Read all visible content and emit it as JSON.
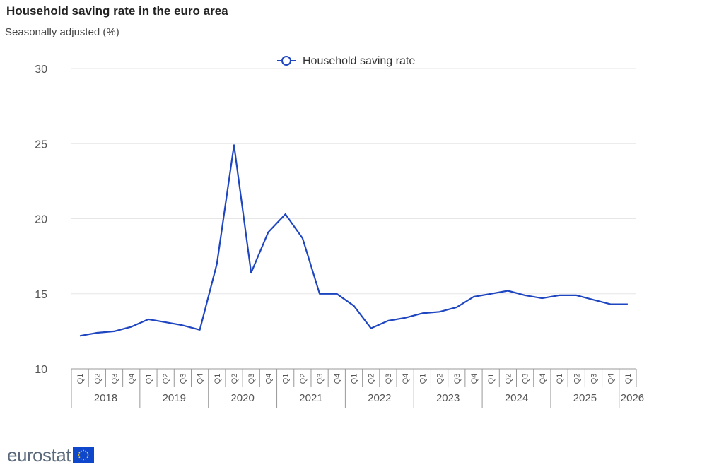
{
  "header": {
    "title": "Household saving rate in the euro area",
    "subtitle": "Seasonally adjusted (%)"
  },
  "brand": {
    "wordmark": "eurostat"
  },
  "colors": {
    "series": "#1f46c1",
    "grid": "#e6e6e6",
    "axis": "#999999",
    "text": "#555555"
  },
  "chart_data": {
    "type": "line",
    "title": "Household saving rate in the euro area",
    "subtitle": "Seasonally adjusted (%)",
    "ylim": [
      10,
      30
    ],
    "yticks": [
      10,
      15,
      20,
      25,
      30
    ],
    "grid": true,
    "legend_position": "top-center",
    "categories": [
      "2018 Q1",
      "2018 Q2",
      "2018 Q3",
      "2018 Q4",
      "2019 Q1",
      "2019 Q2",
      "2019 Q3",
      "2019 Q4",
      "2020 Q1",
      "2020 Q2",
      "2020 Q3",
      "2020 Q4",
      "2021 Q1",
      "2021 Q2",
      "2021 Q3",
      "2021 Q4",
      "2022 Q1",
      "2022 Q2",
      "2022 Q3",
      "2022 Q4",
      "2023 Q1",
      "2023 Q2",
      "2023 Q3",
      "2023 Q4",
      "2024 Q1",
      "2024 Q2",
      "2024 Q3",
      "2024 Q4",
      "2025 Q1",
      "2025 Q2",
      "2025 Q3",
      "2025 Q4",
      "2026 Q1"
    ],
    "quarters": [
      "Q1",
      "Q2",
      "Q3",
      "Q4",
      "Q1",
      "Q2",
      "Q3",
      "Q4",
      "Q1",
      "Q2",
      "Q3",
      "Q4",
      "Q1",
      "Q2",
      "Q3",
      "Q4",
      "Q1",
      "Q2",
      "Q3",
      "Q4",
      "Q1",
      "Q2",
      "Q3",
      "Q4",
      "Q1",
      "Q2",
      "Q3",
      "Q4",
      "Q1",
      "Q2",
      "Q3",
      "Q4",
      "Q1"
    ],
    "years": [
      "2018",
      "2019",
      "2020",
      "2021",
      "2022",
      "2023",
      "2024",
      "2025",
      "2026"
    ],
    "series": [
      {
        "name": "Household saving rate",
        "values": [
          12.2,
          12.4,
          12.5,
          12.8,
          13.3,
          13.1,
          12.9,
          12.6,
          17.0,
          24.9,
          16.4,
          19.1,
          20.3,
          18.7,
          15.0,
          15.0,
          14.2,
          12.7,
          13.2,
          13.4,
          13.7,
          13.8,
          14.1,
          14.8,
          15.0,
          15.2,
          14.9,
          14.7,
          14.9,
          14.9,
          14.6,
          14.3,
          14.3
        ]
      }
    ]
  }
}
